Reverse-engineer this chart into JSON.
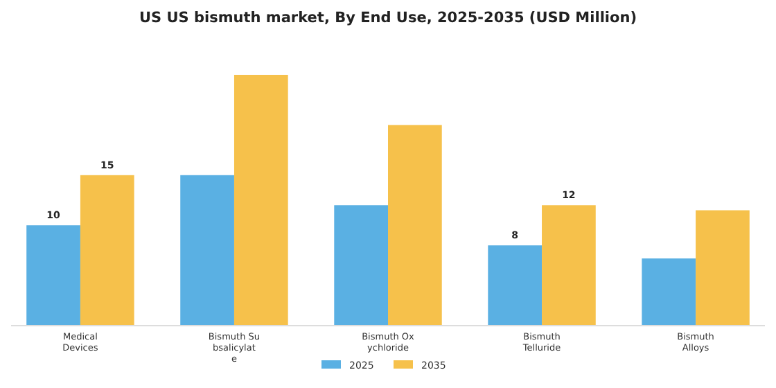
{
  "chart_data": {
    "type": "bar",
    "title": "US US bismuth market, By End Use, 2025-2035 (USD Million)",
    "categories": [
      "Medical\nDevices",
      "Bismuth Su\nbsalicylat\ne",
      "Bismuth Ox\nychloride",
      "Bismuth\nTelluride",
      "Bismuth\nAlloys"
    ],
    "series": [
      {
        "name": "2025",
        "color": "#5ab0e3",
        "values": [
          10,
          15,
          12,
          8,
          6.7
        ],
        "value_labels": [
          "10",
          null,
          null,
          "8",
          null
        ]
      },
      {
        "name": "2035",
        "color": "#f6c14b",
        "values": [
          15,
          25,
          20,
          12,
          11.5
        ],
        "value_labels": [
          "15",
          null,
          null,
          "12",
          null
        ]
      }
    ],
    "legend": "bottom"
  }
}
